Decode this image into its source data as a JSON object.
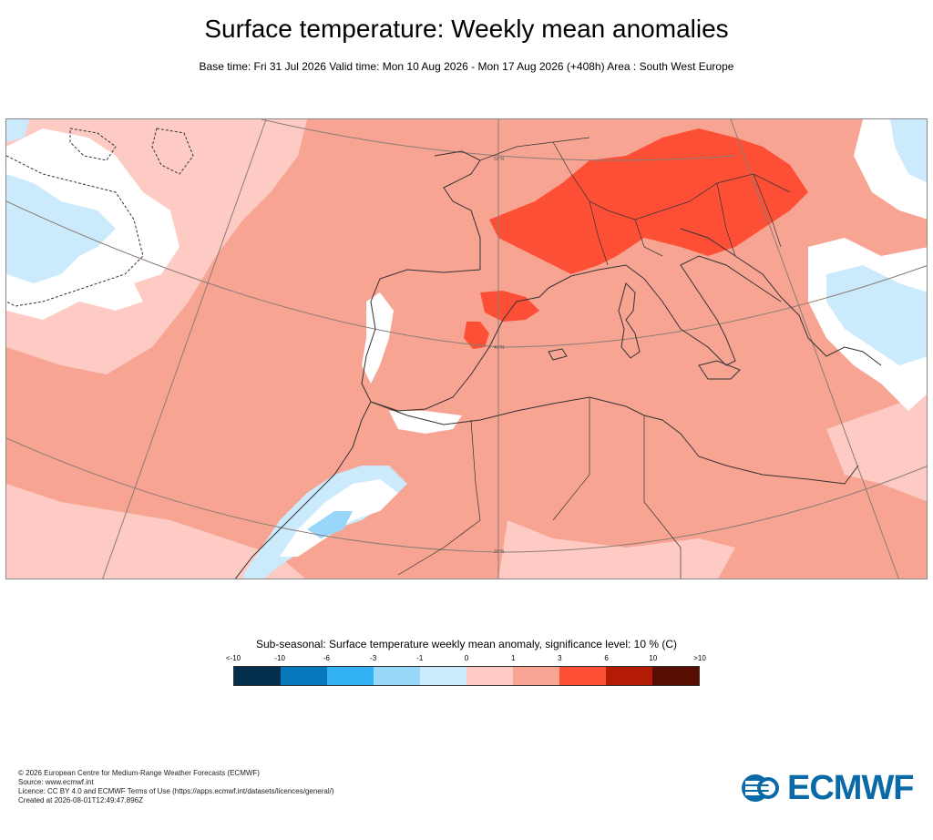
{
  "title": "Surface temperature: Weekly mean anomalies",
  "subtitle": "Base time: Fri 31 Jul 2026 Valid time: Mon 10 Aug 2026 - Mon 17 Aug 2026 (+408h) Area : South West Europe",
  "map": {
    "area": "South West Europe",
    "lat_labels": [
      "50°N",
      "40°N",
      "30°N"
    ],
    "colors": {
      "ocean_base": "#f7a493",
      "land_base": "#f7a493",
      "warm_strong": "#fd4f36",
      "weak_positive": "#fdcbc3",
      "weak_negative": "#cbeafb",
      "negative": "#99d7fa",
      "insignificant": "#ffffff",
      "coast": "#333333",
      "graticule": "#8b7c74"
    }
  },
  "legend": {
    "title": "Sub-seasonal: Surface temperature weekly mean anomaly, significance level: 10 % (C)",
    "ticks": [
      "<-10",
      "-10",
      "-6",
      "-3",
      "-1",
      "0",
      "1",
      "3",
      "6",
      "10",
      ">10"
    ],
    "bins": [
      {
        "color": "#032f4d"
      },
      {
        "color": "#0678bb"
      },
      {
        "color": "#32b2f4"
      },
      {
        "color": "#99d7fa"
      },
      {
        "color": "#cbeafb"
      },
      {
        "color": "#fdcbc3"
      },
      {
        "color": "#f7a493"
      },
      {
        "color": "#fd4f36"
      },
      {
        "color": "#b31b05"
      },
      {
        "color": "#580e02"
      }
    ]
  },
  "footer": {
    "line1": "© 2026 European Centre for Medium-Range Weather Forecasts (ECMWF)",
    "line2": "Source: www.ecmwf.int",
    "line3": "Licence: CC BY 4.0 and ECMWF Terms of Use (https://apps.ecmwf.int/datasets/licences/general/)",
    "line4": "Created at 2026-08-01T12:49:47.896Z"
  },
  "logo": {
    "text": "ECMWF",
    "color": "#0a6aa8"
  }
}
